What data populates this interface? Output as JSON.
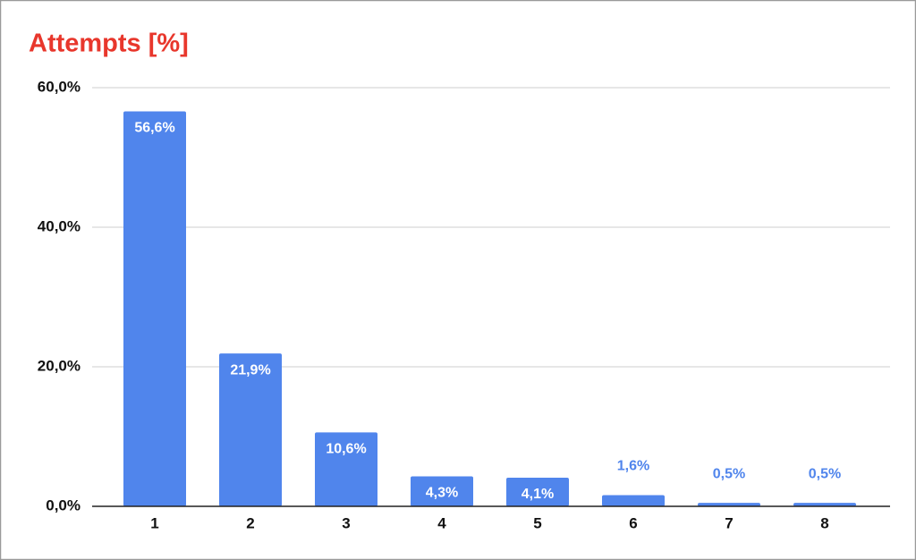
{
  "chart_data": {
    "type": "bar",
    "title": "Attempts [%]",
    "categories": [
      "1",
      "2",
      "3",
      "4",
      "5",
      "6",
      "7",
      "8"
    ],
    "values": [
      56.6,
      21.9,
      10.6,
      4.3,
      4.1,
      1.6,
      0.5,
      0.5
    ],
    "value_labels": [
      "56,6%",
      "21,9%",
      "10,6%",
      "4,3%",
      "4,1%",
      "1,6%",
      "0,5%",
      "0,5%"
    ],
    "color": "#5085ec",
    "ylim": [
      0,
      60
    ],
    "yticks": [
      {
        "value": 0,
        "label": "0,0%"
      },
      {
        "value": 20,
        "label": "20,0%"
      },
      {
        "value": 40,
        "label": "40,0%"
      },
      {
        "value": 60,
        "label": "60,0%"
      }
    ],
    "grid": true
  }
}
